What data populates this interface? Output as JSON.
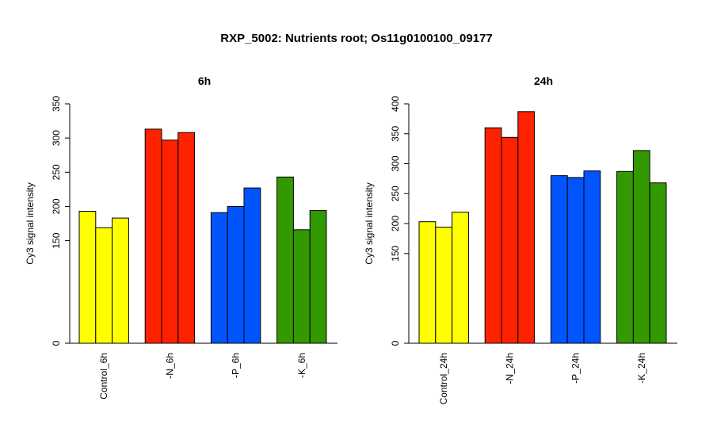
{
  "title": "RXP_5002: Nutrients root; Os11g0100100_09177",
  "chart_data": [
    {
      "type": "bar",
      "title": "6h",
      "ylabel": "Cy3 signal intensity",
      "ylim": [
        0,
        350
      ],
      "yticks": [
        0,
        150,
        200,
        250,
        300,
        350
      ],
      "categories": [
        "Control_6h",
        "-N_6h",
        "-P_6h",
        "-K_6h"
      ],
      "colors": [
        "#ffff00",
        "#ff2200",
        "#0055ff",
        "#339900"
      ],
      "values": [
        [
          193,
          169,
          183
        ],
        [
          313,
          297,
          308
        ],
        [
          191,
          200,
          227
        ],
        [
          243,
          166,
          194
        ]
      ]
    },
    {
      "type": "bar",
      "title": "24h",
      "ylabel": "Cy3 signal intensity",
      "ylim": [
        0,
        400
      ],
      "yticks": [
        0,
        150,
        200,
        250,
        300,
        350,
        400
      ],
      "categories": [
        "Control_24h",
        "-N_24h",
        "-P_24h",
        "-K_24h"
      ],
      "colors": [
        "#ffff00",
        "#ff2200",
        "#0055ff",
        "#339900"
      ],
      "values": [
        [
          203,
          194,
          219
        ],
        [
          360,
          344,
          387
        ],
        [
          280,
          277,
          288
        ],
        [
          287,
          322,
          268
        ]
      ]
    }
  ]
}
